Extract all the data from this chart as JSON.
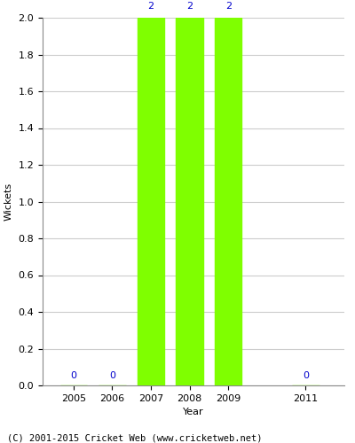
{
  "years": [
    2005,
    2006,
    2007,
    2008,
    2009,
    2011
  ],
  "wickets": [
    0,
    0,
    2,
    2,
    2,
    0
  ],
  "bar_color": "#7fff00",
  "bar_width": 0.7,
  "label_color": "#0000cc",
  "ylabel": "Wickets",
  "xlabel": "Year",
  "ylim": [
    0,
    2.0
  ],
  "yticks": [
    0.0,
    0.2,
    0.4,
    0.6,
    0.8,
    1.0,
    1.2,
    1.4,
    1.6,
    1.8,
    2.0
  ],
  "bg_color": "#ffffff",
  "grid_color": "#cccccc",
  "caption": "(C) 2001-2015 Cricket Web (www.cricketweb.net)",
  "caption_fontsize": 7.5,
  "axis_label_fontsize": 8,
  "tick_fontsize": 8,
  "value_label_fontsize": 8,
  "xlim_left": 2004.2,
  "xlim_right": 2012.0
}
